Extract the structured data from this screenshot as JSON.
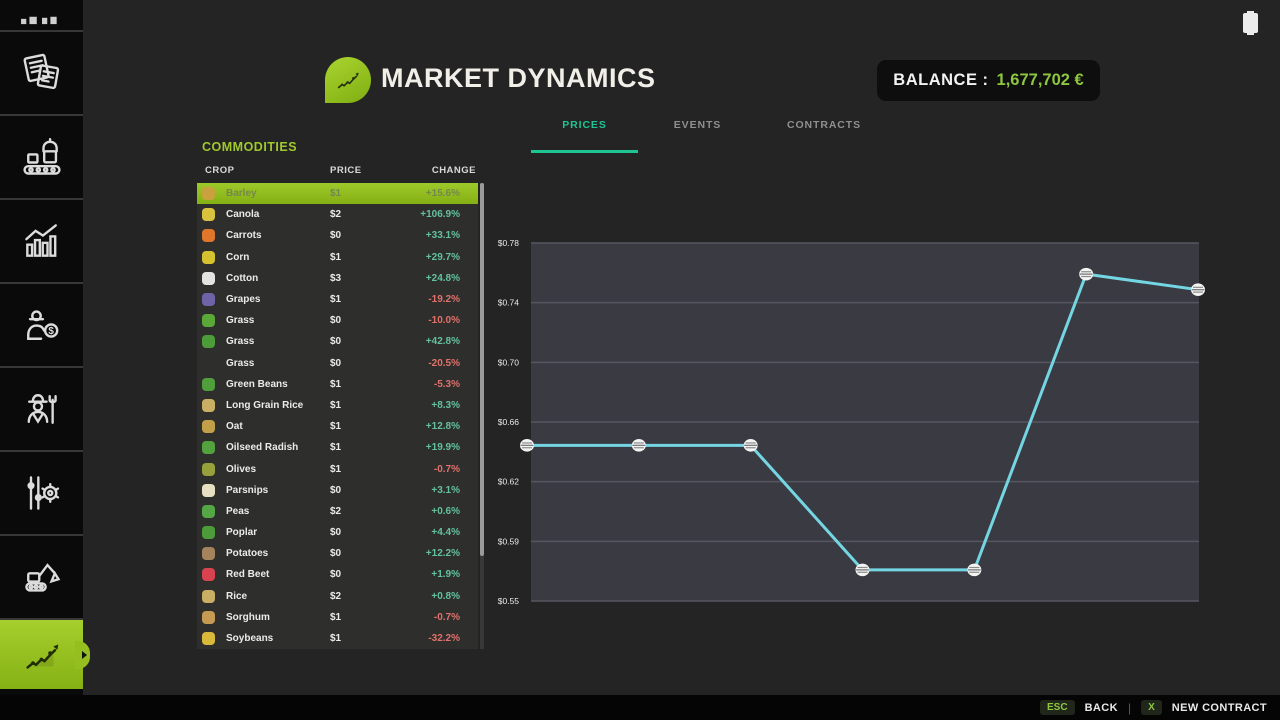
{
  "header": {
    "title": "MARKET DYNAMICS",
    "balance_label": "BALANCE :",
    "balance_value": "1,677,702 €",
    "balance_color": "#8dc63f",
    "logo_icon": "market-trend-leaf-icon",
    "status_icon": "battery-icon"
  },
  "tabs": [
    {
      "label": "PRICES",
      "active": true
    },
    {
      "label": "EVENTS",
      "active": false
    },
    {
      "label": "CONTRACTS",
      "active": false
    }
  ],
  "accent": {
    "tab_active": "#1fc493",
    "lime": "#9fc92c",
    "positive": "#63c29c",
    "negative": "#e0716b"
  },
  "sidebar": {
    "items": [
      {
        "icon": "partial-vehicle-icon"
      },
      {
        "icon": "documents-icon"
      },
      {
        "icon": "production-icon"
      },
      {
        "icon": "statistics-icon"
      },
      {
        "icon": "sales-icon"
      },
      {
        "icon": "farmer-icon"
      },
      {
        "icon": "settings-icon"
      },
      {
        "icon": "construction-icon"
      },
      {
        "icon": "market-icon",
        "active": true
      }
    ]
  },
  "commodities": {
    "title": "COMMODITIES",
    "columns": [
      "CROP",
      "PRICE",
      "CHANGE"
    ],
    "rows": [
      {
        "name": "Barley",
        "price": "$1",
        "change": "+15.6%",
        "direction": "up",
        "selected": true,
        "icon": "barley-icon",
        "icon_color": "#c9a23e"
      },
      {
        "name": "Canola",
        "price": "$2",
        "change": "+106.9%",
        "direction": "up",
        "selected": false,
        "icon": "canola-icon",
        "icon_color": "#d9c33e"
      },
      {
        "name": "Carrots",
        "price": "$0",
        "change": "+33.1%",
        "direction": "up",
        "selected": false,
        "icon": "carrots-icon",
        "icon_color": "#e0762a"
      },
      {
        "name": "Corn",
        "price": "$1",
        "change": "+29.7%",
        "direction": "up",
        "selected": false,
        "icon": "corn-icon",
        "icon_color": "#d6c22f"
      },
      {
        "name": "Cotton",
        "price": "$3",
        "change": "+24.8%",
        "direction": "up",
        "selected": false,
        "icon": "cotton-icon",
        "icon_color": "#e3e3df"
      },
      {
        "name": "Grapes",
        "price": "$1",
        "change": "-19.2%",
        "direction": "down",
        "selected": false,
        "icon": "grapes-icon",
        "icon_color": "#6f63a8"
      },
      {
        "name": "Grass",
        "price": "$0",
        "change": "-10.0%",
        "direction": "down",
        "selected": false,
        "icon": "grass-icon",
        "icon_color": "#59a838"
      },
      {
        "name": "Grass",
        "price": "$0",
        "change": "+42.8%",
        "direction": "up",
        "selected": false,
        "icon": "grass-icon",
        "icon_color": "#4d9c3a"
      },
      {
        "name": "Grass",
        "price": "$0",
        "change": "-20.5%",
        "direction": "down",
        "selected": false,
        "icon": "none",
        "icon_color": null
      },
      {
        "name": "Green Beans",
        "price": "$1",
        "change": "-5.3%",
        "direction": "down",
        "selected": false,
        "icon": "green-beans-icon",
        "icon_color": "#4fa03b"
      },
      {
        "name": "Long Grain Rice",
        "price": "$1",
        "change": "+8.3%",
        "direction": "up",
        "selected": false,
        "icon": "rice-icon",
        "icon_color": "#c9ae63"
      },
      {
        "name": "Oat",
        "price": "$1",
        "change": "+12.8%",
        "direction": "up",
        "selected": false,
        "icon": "oat-icon",
        "icon_color": "#c2a04a"
      },
      {
        "name": "Oilseed Radish",
        "price": "$1",
        "change": "+19.9%",
        "direction": "up",
        "selected": false,
        "icon": "oilseed-radish-icon",
        "icon_color": "#53a23e"
      },
      {
        "name": "Olives",
        "price": "$1",
        "change": "-0.7%",
        "direction": "down",
        "selected": false,
        "icon": "olives-icon",
        "icon_color": "#97a13c"
      },
      {
        "name": "Parsnips",
        "price": "$0",
        "change": "+3.1%",
        "direction": "up",
        "selected": false,
        "icon": "parsnips-icon",
        "icon_color": "#e6dfc2"
      },
      {
        "name": "Peas",
        "price": "$2",
        "change": "+0.6%",
        "direction": "up",
        "selected": false,
        "icon": "peas-icon",
        "icon_color": "#55a746"
      },
      {
        "name": "Poplar",
        "price": "$0",
        "change": "+4.4%",
        "direction": "up",
        "selected": false,
        "icon": "poplar-icon",
        "icon_color": "#4d9c3a"
      },
      {
        "name": "Potatoes",
        "price": "$0",
        "change": "+12.2%",
        "direction": "up",
        "selected": false,
        "icon": "potatoes-icon",
        "icon_color": "#a5835c"
      },
      {
        "name": "Red Beet",
        "price": "$0",
        "change": "+1.9%",
        "direction": "up",
        "selected": false,
        "icon": "red-beet-icon",
        "icon_color": "#d8434f"
      },
      {
        "name": "Rice",
        "price": "$2",
        "change": "+0.8%",
        "direction": "up",
        "selected": false,
        "icon": "rice-icon",
        "icon_color": "#c9ae63"
      },
      {
        "name": "Sorghum",
        "price": "$1",
        "change": "-0.7%",
        "direction": "down",
        "selected": false,
        "icon": "sorghum-icon",
        "icon_color": "#c59a52"
      },
      {
        "name": "Soybeans",
        "price": "$1",
        "change": "-32.2%",
        "direction": "down",
        "selected": false,
        "icon": "soybeans-icon",
        "icon_color": "#d9b93c"
      }
    ]
  },
  "chart_data": {
    "type": "line",
    "title": "",
    "xlabel": "",
    "ylabel": "",
    "y_ticks": [
      "$0.78",
      "$0.74",
      "$0.70",
      "$0.66",
      "$0.62",
      "$0.59",
      "$0.55"
    ],
    "y_domain": [
      0.55,
      0.78
    ],
    "x": [
      0,
      1,
      2,
      3,
      4,
      5,
      6
    ],
    "values": [
      0.65,
      0.65,
      0.65,
      0.57,
      0.57,
      0.76,
      0.75
    ],
    "grid": true,
    "legend": "none",
    "line_color": "#74d6e2",
    "marker": "white-grip-circle",
    "plot_bg": "#3a3a43",
    "grid_color": "#565661",
    "tick_color": "#eaeaea"
  },
  "footer": {
    "esc_key": "ESC",
    "back_label": "BACK",
    "divider": "|",
    "x_key": "X",
    "new_contract_label": "NEW CONTRACT"
  }
}
